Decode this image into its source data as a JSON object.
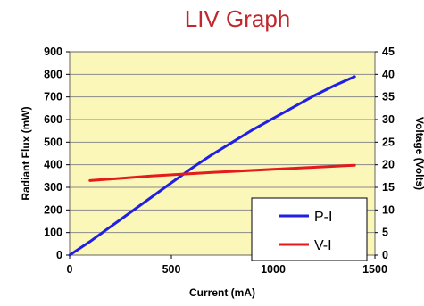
{
  "chart_data": {
    "type": "line",
    "title": "LIV Graph",
    "xlabel": "Current (mA)",
    "ylabel": "Radiant Flux (mW)",
    "y2label": "Voltage (Volts)",
    "xlim": [
      0,
      1500
    ],
    "ylim": [
      0,
      900
    ],
    "y2lim": [
      0,
      45
    ],
    "xticks": [
      0,
      500,
      1000,
      1500
    ],
    "yticks": [
      0,
      100,
      200,
      300,
      400,
      500,
      600,
      700,
      800,
      900
    ],
    "y2ticks": [
      0,
      5,
      10,
      15,
      20,
      25,
      30,
      35,
      40,
      45
    ],
    "grid": true,
    "legend_position": "bottom-right",
    "series": [
      {
        "name": "P-I",
        "axis": "left",
        "color": "#1f1fe6",
        "x": [
          0,
          100,
          200,
          300,
          400,
          500,
          600,
          700,
          800,
          900,
          1000,
          1100,
          1200,
          1300,
          1400
        ],
        "y": [
          0,
          60,
          125,
          190,
          255,
          320,
          385,
          445,
          500,
          555,
          605,
          655,
          705,
          750,
          790
        ]
      },
      {
        "name": "V-I",
        "axis": "right",
        "color": "#e51a1a",
        "x": [
          100,
          400,
          700,
          1000,
          1400
        ],
        "y": [
          16.5,
          17.5,
          18.3,
          19.0,
          19.9
        ]
      }
    ]
  }
}
